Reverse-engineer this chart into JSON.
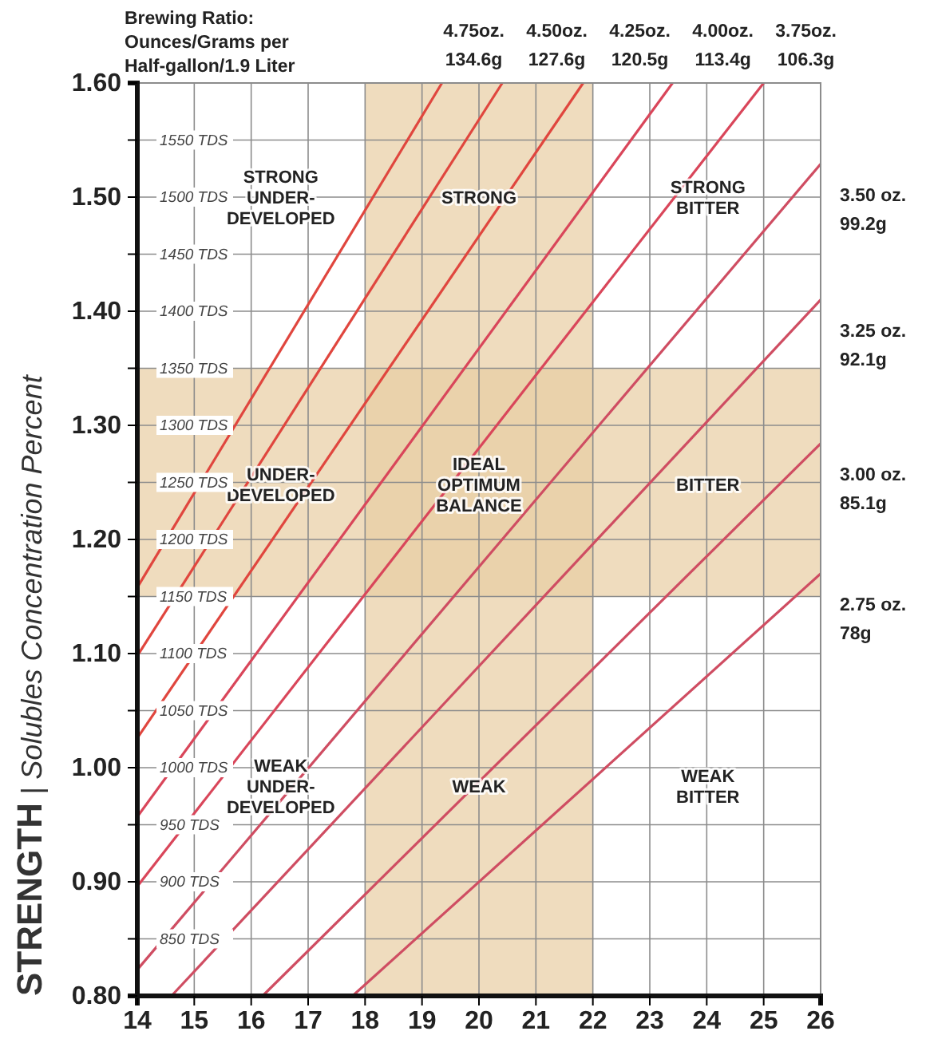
{
  "chart_data": {
    "type": "line",
    "title": "Brewing Ratio: Ounces/Grams per Half-gallon/1.9 Liter",
    "ylabel": "STRENGTH | Solubles Concentration Percent",
    "xlim": [
      14,
      26
    ],
    "xticks": [
      14,
      15,
      16,
      17,
      18,
      19,
      20,
      21,
      22,
      23,
      24,
      25,
      26
    ],
    "ylim": [
      0.8,
      1.6
    ],
    "yticks": [
      {
        "value": 0.8,
        "label": "0.80"
      },
      {
        "value": 0.85,
        "label": null
      },
      {
        "value": 0.9,
        "label": "0.90"
      },
      {
        "value": 0.95,
        "label": null
      },
      {
        "value": 1.0,
        "label": "1.00"
      },
      {
        "value": 1.05,
        "label": null
      },
      {
        "value": 1.1,
        "label": "1.10"
      },
      {
        "value": 1.15,
        "label": null
      },
      {
        "value": 1.2,
        "label": "1.20"
      },
      {
        "value": 1.25,
        "label": null
      },
      {
        "value": 1.3,
        "label": "1.30"
      },
      {
        "value": 1.35,
        "label": null
      },
      {
        "value": 1.4,
        "label": "1.40"
      },
      {
        "value": 1.45,
        "label": null
      },
      {
        "value": 1.5,
        "label": "1.50"
      },
      {
        "value": 1.55,
        "label": null
      },
      {
        "value": 1.6,
        "label": "1.60"
      }
    ],
    "y2lim": [
      800,
      1600
    ],
    "y2ticks": [
      {
        "value": 850,
        "label": "850 TDS"
      },
      {
        "value": 900,
        "label": "900 TDS"
      },
      {
        "value": 950,
        "label": "950 TDS"
      },
      {
        "value": 1000,
        "label": "1000 TDS"
      },
      {
        "value": 1050,
        "label": "1050 TDS"
      },
      {
        "value": 1100,
        "label": "1100 TDS"
      },
      {
        "value": 1150,
        "label": "1150 TDS"
      },
      {
        "value": 1200,
        "label": "1200 TDS"
      },
      {
        "value": 1250,
        "label": "1250 TDS"
      },
      {
        "value": 1300,
        "label": "1300 TDS"
      },
      {
        "value": 1350,
        "label": "1350 TDS"
      },
      {
        "value": 1400,
        "label": "1400 TDS"
      },
      {
        "value": 1450,
        "label": "1450 TDS"
      },
      {
        "value": 1500,
        "label": "1500 TDS"
      },
      {
        "value": 1550,
        "label": "1550 TDS"
      }
    ],
    "grid": true,
    "marker": "none",
    "line_style": "solid",
    "series": [
      {
        "name": "4.75oz. 134.6g",
        "color": "#e0463e",
        "x": [
          14,
          19.35
        ],
        "values": [
          1.158,
          1.6
        ]
      },
      {
        "name": "4.50oz. 127.6g",
        "color": "#e0463e",
        "x": [
          14,
          20.41
        ],
        "values": [
          1.098,
          1.6
        ]
      },
      {
        "name": "4.25oz. 120.5g",
        "color": "#e0463e",
        "x": [
          14,
          21.83
        ],
        "values": [
          1.026,
          1.6
        ]
      },
      {
        "name": "4.00oz. 113.4g",
        "color": "#d9465a",
        "x": [
          14,
          23.4
        ],
        "values": [
          0.957,
          1.6
        ]
      },
      {
        "name": "3.75oz. 106.3g",
        "color": "#d9465a",
        "x": [
          14,
          25.0
        ],
        "values": [
          0.896,
          1.6
        ]
      },
      {
        "name": "3.50 oz. 99.2g",
        "color": "#cf4d62",
        "x": [
          14,
          26
        ],
        "values": [
          0.823,
          1.529
        ]
      },
      {
        "name": "3.25 oz. 92.1g",
        "color": "#cf4d62",
        "x": [
          14.6,
          26
        ],
        "values": [
          0.8,
          1.41
        ]
      },
      {
        "name": "3.00 oz. 85.1g",
        "color": "#cf4d62",
        "x": [
          16.2,
          26
        ],
        "values": [
          0.8,
          1.284
        ]
      },
      {
        "name": "2.75 oz. 78g",
        "color": "#cf4d62",
        "x": [
          17.78,
          26
        ],
        "values": [
          0.8,
          1.17
        ]
      }
    ],
    "bands": [
      {
        "axis": "x",
        "from": 18,
        "to": 22,
        "color": "#e8cda3"
      },
      {
        "axis": "y",
        "from": 1.15,
        "to": 1.35,
        "color": "#e8cda3"
      }
    ],
    "annotations": [
      "STRONG UNDER-DEVELOPED",
      "STRONG",
      "STRONG BITTER",
      "UNDER-DEVELOPED",
      "IDEAL OPTIMUM BALANCE",
      "BITTER",
      "WEAK UNDER-DEVELOPED",
      "WEAK",
      "WEAK BITTER"
    ]
  }
}
